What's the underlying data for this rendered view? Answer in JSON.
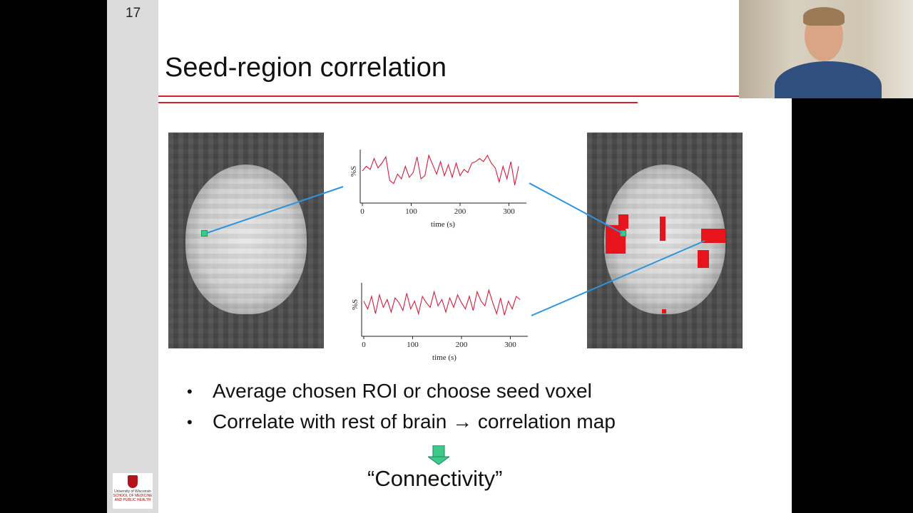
{
  "slide": {
    "number": "17",
    "title": "Seed-region correlation",
    "bullets": [
      "Average chosen ROI or choose seed voxel",
      "Correlate with rest of brain → correlation map"
    ],
    "conclusion": "“Connectivity”",
    "logo": {
      "line1": "University of Wisconsin",
      "line2": "SCHOOL OF MEDICINE AND PUBLIC HEALTH",
      "mark": "W"
    }
  },
  "colors": {
    "accent_rule": "#d6202e",
    "trace": "#d81b3c",
    "connector": "#2b95de",
    "seed": "#3cc98a",
    "arrow": "#3cc98a",
    "activation": "#e8141c"
  },
  "chart_data": [
    {
      "type": "line",
      "xlabel": "time (s)",
      "ylabel": "%S",
      "xticks": [
        "0",
        "100",
        "200",
        "300"
      ],
      "xlim": [
        0,
        330
      ],
      "series": [
        {
          "x_step": 8,
          "values": [
            0,
            0.3,
            0.1,
            0.8,
            0.2,
            0.5,
            0.9,
            -0.6,
            -0.8,
            -0.2,
            -0.5,
            0.3,
            -0.4,
            -0.1,
            0.9,
            -0.5,
            -0.3,
            1,
            0.4,
            -0.2,
            0.6,
            -0.3,
            0.4,
            -0.4,
            0.5,
            -0.3,
            0.1,
            -0.1,
            0.5,
            0.6,
            0.8,
            0.6,
            1,
            0.5,
            0.2,
            -0.7,
            0.3,
            -0.5,
            0.6,
            -0.9,
            0.3
          ]
        }
      ]
    },
    {
      "type": "line",
      "xlabel": "time (s)",
      "ylabel": "%S",
      "xticks": [
        "0",
        "100",
        "200",
        "300"
      ],
      "xlim": [
        0,
        330
      ],
      "series": [
        {
          "x_step": 8,
          "values": [
            0.2,
            -0.3,
            0.5,
            -0.6,
            0.6,
            -0.2,
            0.3,
            -0.5,
            0.4,
            0.1,
            -0.4,
            0.7,
            -0.3,
            0.2,
            -0.6,
            0.5,
            0.1,
            -0.2,
            0.8,
            -0.1,
            0.3,
            -0.5,
            0.4,
            -0.2,
            0.6,
            0.1,
            -0.3,
            0.5,
            -0.4,
            0.8,
            0.2,
            -0.1,
            0.9,
            0.1,
            -0.6,
            0.4,
            -0.7,
            0.2,
            -0.3,
            0.5,
            0.3
          ]
        }
      ]
    }
  ]
}
